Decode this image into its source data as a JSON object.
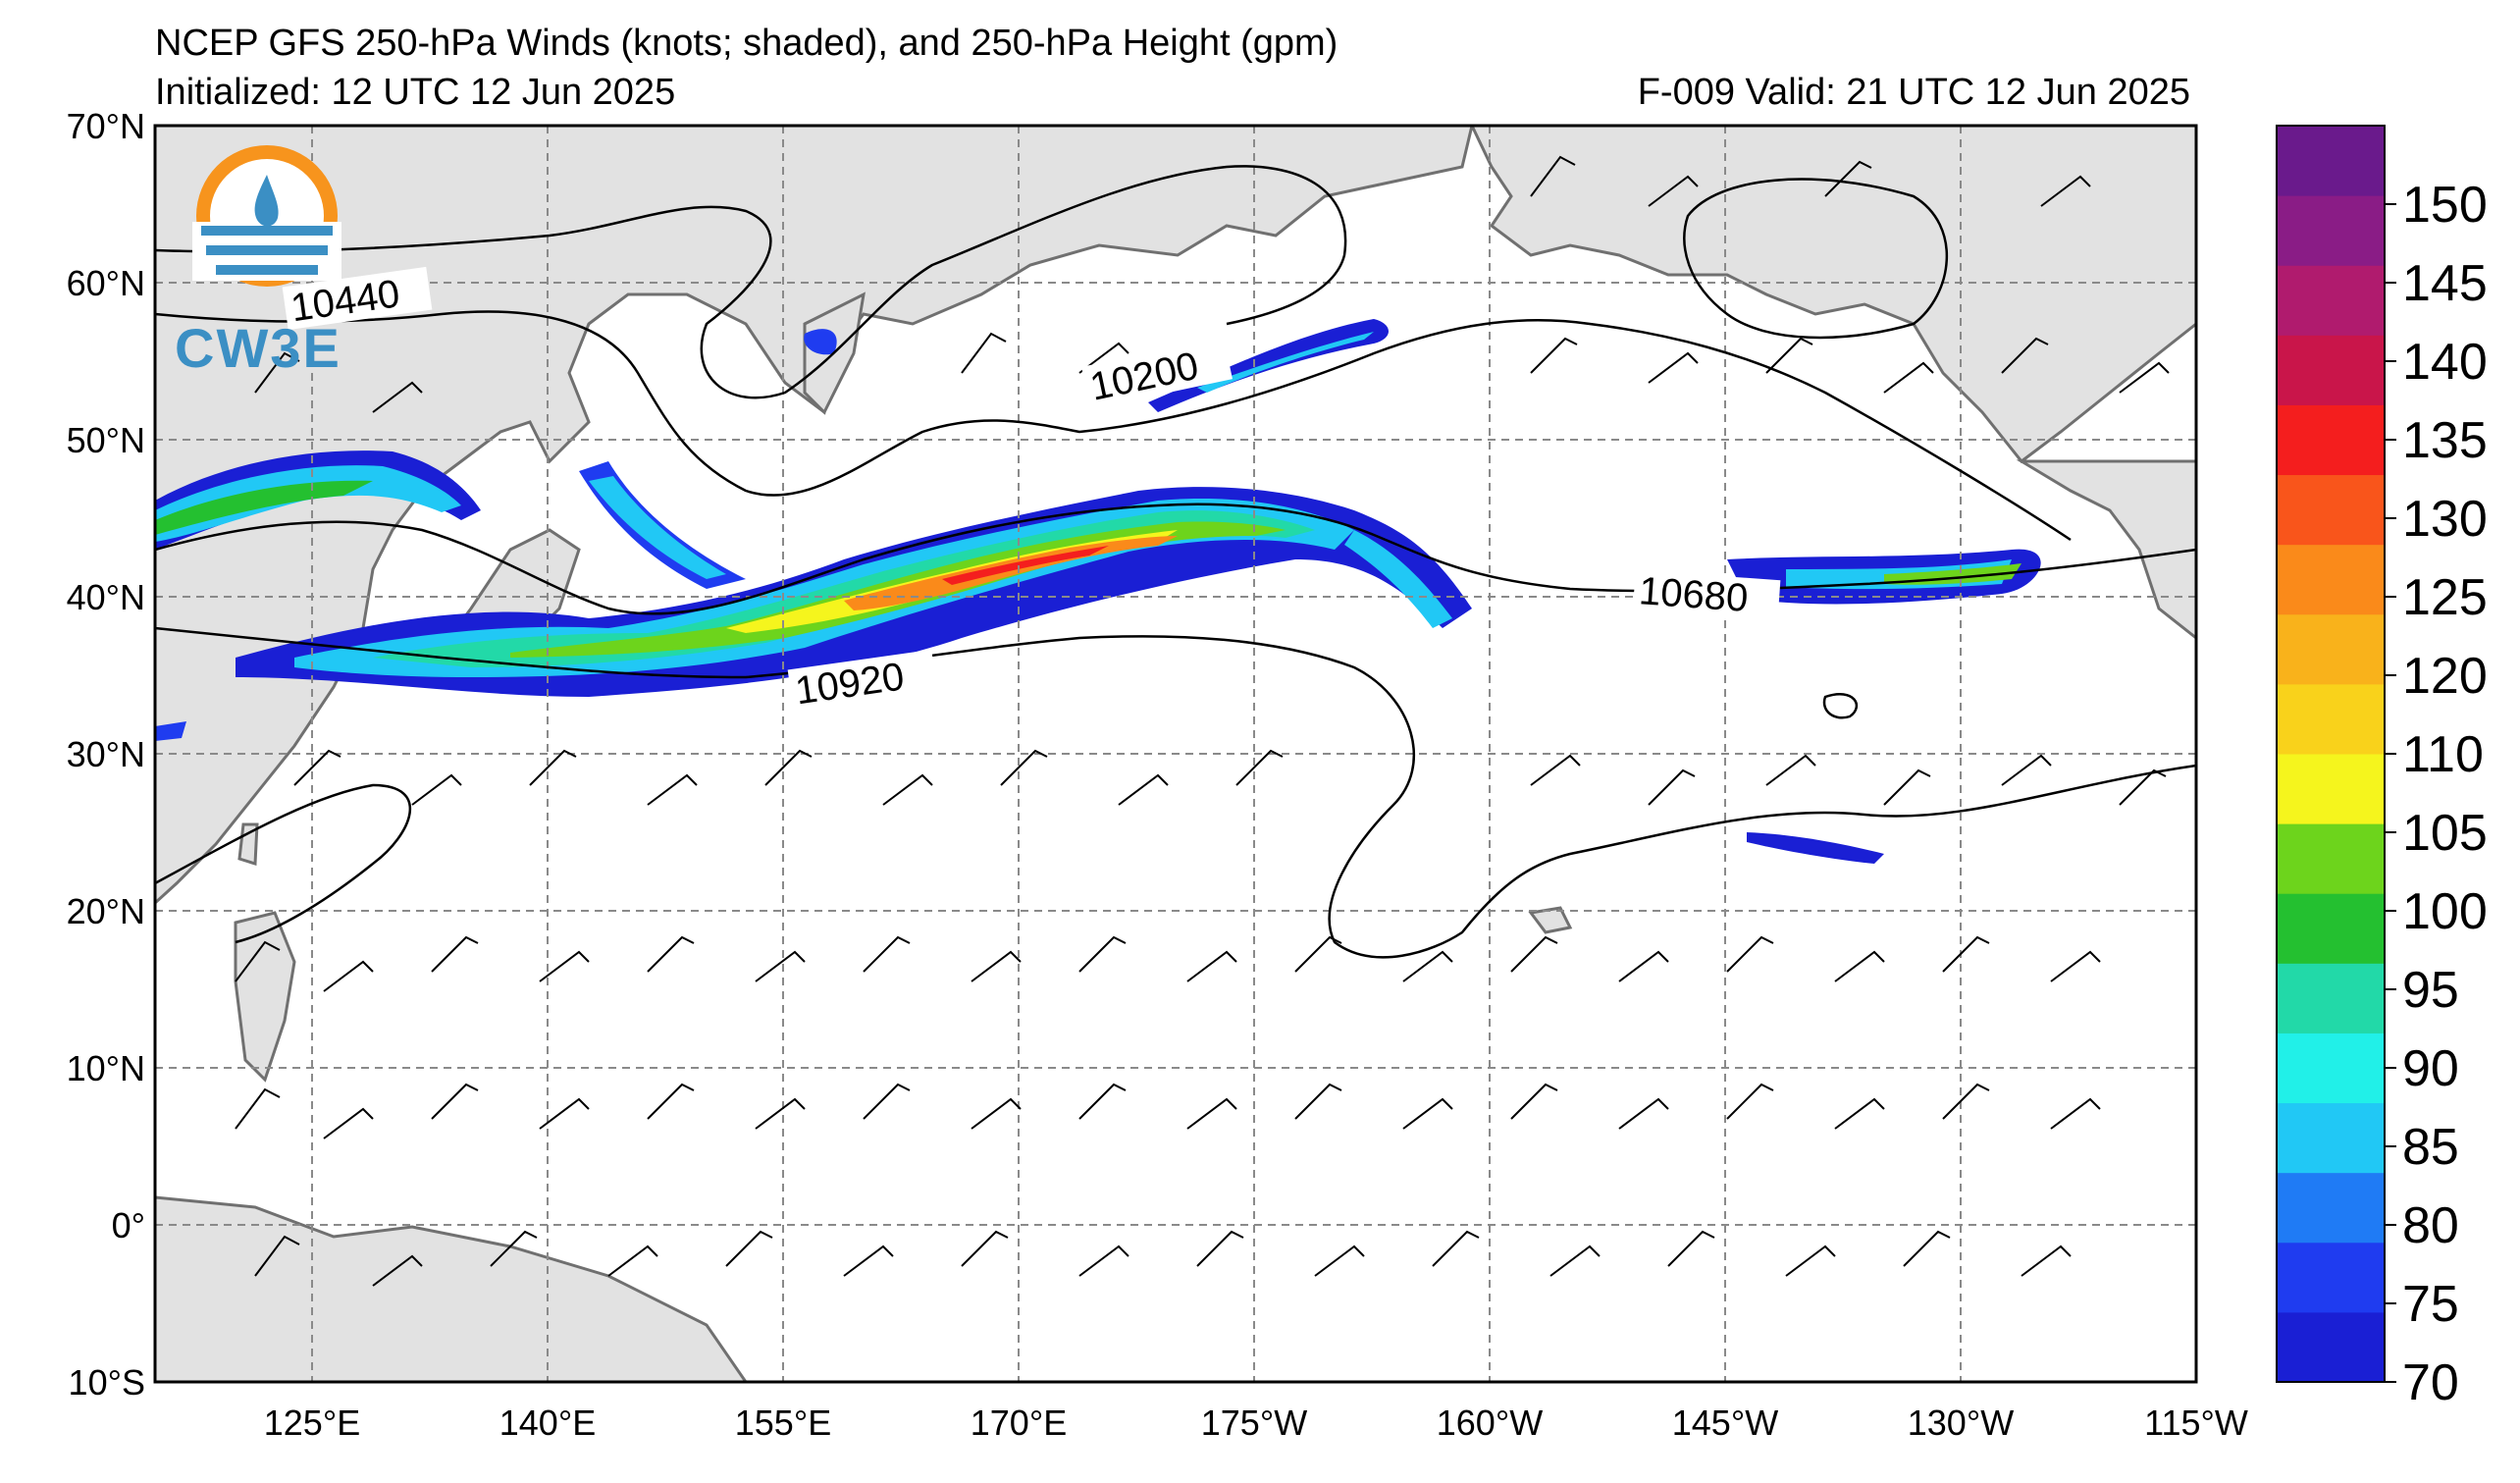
{
  "title": "NCEP GFS 250-hPa Winds (knots; shaded), and 250-hPa Height (gpm)",
  "initialized": "Initialized: 12 UTC 12 Jun 2025",
  "valid": "F-009  Valid: 21 UTC 12 Jun 2025",
  "logo_text": "CW3E",
  "lat_labels": [
    "70°N",
    "60°N",
    "50°N",
    "40°N",
    "30°N",
    "20°N",
    "10°N",
    "0°",
    "10°S"
  ],
  "lon_labels": [
    "125°E",
    "140°E",
    "155°E",
    "170°E",
    "175°W",
    "160°W",
    "145°W",
    "130°W",
    "115°W"
  ],
  "colorbar": {
    "labels": [
      "70",
      "75",
      "80",
      "85",
      "90",
      "95",
      "100",
      "105",
      "110",
      "120",
      "125",
      "130",
      "135",
      "140",
      "145",
      "150"
    ],
    "colors": [
      "#1a1fd4",
      "#1f3cf0",
      "#1f7bf5",
      "#21c8f5",
      "#21f0e8",
      "#22d9a8",
      "#24c030",
      "#6dd41c",
      "#f5f51d",
      "#f9d21b",
      "#f9b21b",
      "#fa8a1a",
      "#f9551b",
      "#f41e1e",
      "#c9154a",
      "#b01b6e",
      "#8a1c86",
      "#6a1a8c"
    ]
  },
  "contour_labels": [
    "10440",
    "10200",
    "10680",
    "10920"
  ],
  "colors": {
    "land": "#e2e2e2",
    "ocean": "#ffffff",
    "coast": "#707070",
    "grid": "#8a8a8a"
  }
}
